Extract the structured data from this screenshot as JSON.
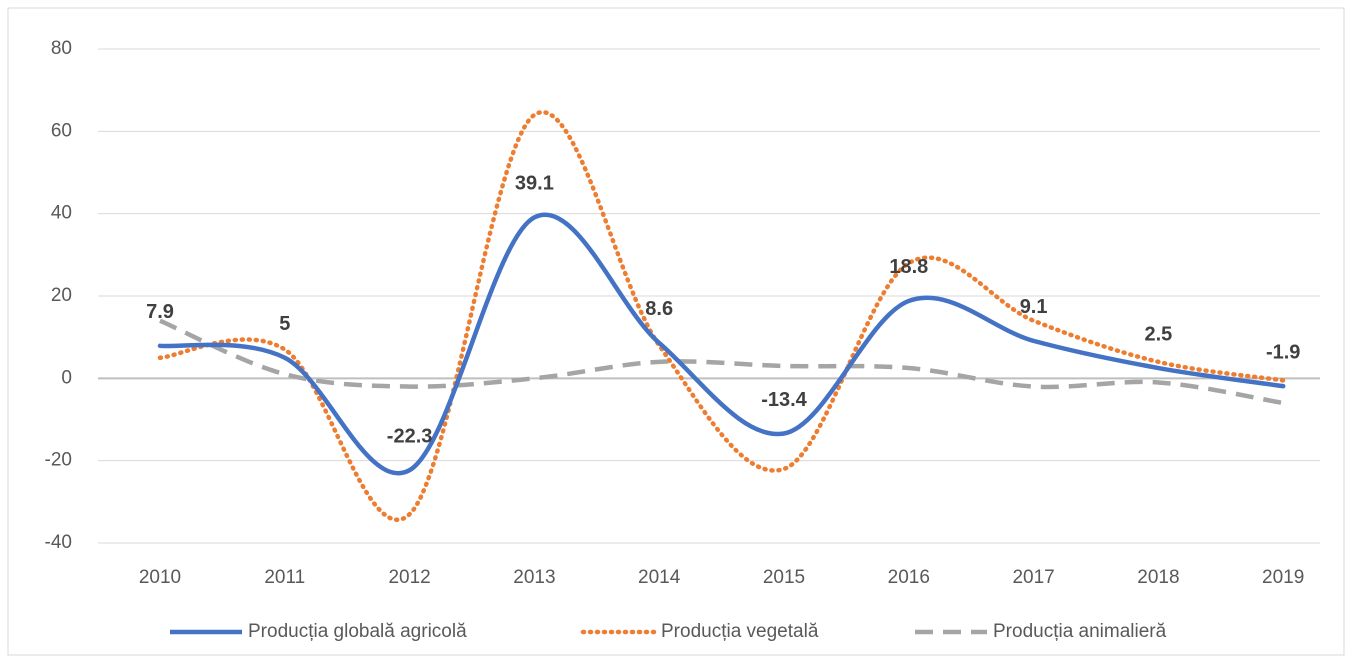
{
  "chart_data": {
    "type": "line",
    "categories": [
      "2010",
      "2011",
      "2012",
      "2013",
      "2014",
      "2015",
      "2016",
      "2017",
      "2018",
      "2019"
    ],
    "series": [
      {
        "name": "Producția globală agricolă",
        "color": "#4472c4",
        "dash": "solid",
        "data_labels": true,
        "values": [
          7.9,
          5,
          -22.3,
          39.1,
          8.6,
          -13.4,
          18.8,
          9.1,
          2.5,
          -1.9
        ]
      },
      {
        "name": "Producția vegetală",
        "color": "#ed7d31",
        "dash": "dotted",
        "data_labels": false,
        "values": [
          5,
          7,
          -33,
          64,
          8,
          -22,
          28,
          14,
          4,
          -0.5
        ]
      },
      {
        "name": "Producția animalieră",
        "color": "#a5a5a5",
        "dash": "dashed",
        "data_labels": false,
        "values": [
          14,
          1,
          -2,
          0,
          4,
          3,
          2.5,
          -2,
          -1,
          -6
        ]
      }
    ],
    "ylim": [
      -40,
      80
    ],
    "yticks": [
      -40,
      -20,
      0,
      20,
      40,
      60,
      80
    ],
    "grid": true,
    "smooth": true,
    "legend": "bottom"
  }
}
